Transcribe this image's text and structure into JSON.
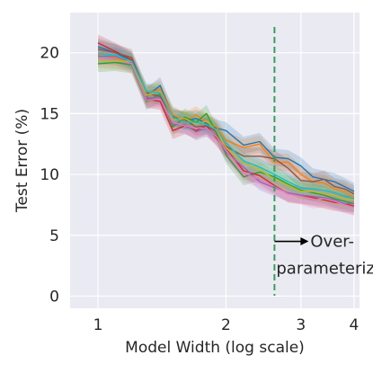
{
  "chart_data": {
    "type": "line",
    "title": "",
    "xlabel": "Model Width (log scale)",
    "ylabel": "Test Error (%)",
    "xlim": [
      0.86,
      4.12
    ],
    "ylim": [
      -1.0,
      23.3
    ],
    "x_scale": "log",
    "grid": true,
    "legend": "none",
    "xticks": [
      1,
      2,
      3,
      4
    ],
    "xtick_labels": [
      "1",
      "2",
      "3",
      "4"
    ],
    "yticks": [
      0,
      5,
      10,
      15,
      20
    ],
    "ytick_labels": [
      "0",
      "5",
      "10",
      "15",
      "20"
    ],
    "x": [
      1.0,
      1.1,
      1.2,
      1.3,
      1.4,
      1.5,
      1.6,
      1.7,
      1.8,
      1.9,
      2.0,
      2.2,
      2.4,
      2.6,
      2.8,
      3.0,
      3.2,
      3.4,
      3.6,
      3.8,
      4.0
    ],
    "series": [
      {
        "color": "#1f77b4",
        "values": [
          20.5,
          20.0,
          19.3,
          16.4,
          17.3,
          14.8,
          14.4,
          14.6,
          14.2,
          13.8,
          13.6,
          12.4,
          12.7,
          11.4,
          11.3,
          10.7,
          9.8,
          9.6,
          9.4,
          9.0,
          8.6
        ]
      },
      {
        "color": "#ff7f0e",
        "values": [
          19.8,
          19.6,
          19.0,
          16.6,
          17.0,
          14.9,
          14.4,
          14.9,
          14.3,
          13.9,
          12.8,
          12.2,
          12.5,
          11.0,
          11.0,
          10.0,
          9.4,
          9.3,
          8.8,
          8.6,
          8.1
        ]
      },
      {
        "color": "#2ca02c",
        "values": [
          19.1,
          19.2,
          19.0,
          16.0,
          16.6,
          13.9,
          14.7,
          14.3,
          15.0,
          13.4,
          11.6,
          9.8,
          10.2,
          9.8,
          9.2,
          8.7,
          8.5,
          8.3,
          8.0,
          7.8,
          7.6
        ]
      },
      {
        "color": "#d62728",
        "values": [
          20.8,
          20.1,
          19.4,
          16.2,
          16.0,
          13.6,
          14.0,
          13.6,
          14.0,
          13.0,
          12.1,
          10.3,
          9.9,
          9.1,
          8.4,
          8.3,
          8.1,
          7.9,
          7.7,
          7.6,
          7.4
        ]
      },
      {
        "color": "#9467bd",
        "values": [
          19.7,
          19.7,
          19.2,
          16.3,
          16.3,
          14.1,
          14.1,
          13.5,
          13.8,
          13.2,
          11.8,
          10.6,
          9.4,
          8.9,
          8.5,
          8.3,
          8.2,
          8.1,
          7.9,
          7.6,
          7.6
        ]
      },
      {
        "color": "#8c564b",
        "values": [
          20.3,
          20.0,
          19.6,
          16.7,
          16.4,
          14.6,
          14.5,
          13.9,
          14.0,
          13.5,
          12.3,
          11.5,
          11.5,
          11.3,
          10.5,
          9.5,
          9.4,
          9.6,
          9.0,
          8.8,
          8.4
        ]
      },
      {
        "color": "#e377c2",
        "values": [
          19.5,
          19.4,
          19.1,
          16.1,
          16.2,
          14.3,
          14.0,
          13.8,
          13.8,
          13.1,
          12.0,
          10.1,
          9.6,
          9.0,
          8.4,
          8.2,
          7.9,
          8.0,
          7.8,
          7.5,
          7.3
        ]
      },
      {
        "color": "#bcbd22",
        "values": [
          19.4,
          19.3,
          19.3,
          16.5,
          16.8,
          14.5,
          14.6,
          14.1,
          14.4,
          13.6,
          12.2,
          10.9,
          10.4,
          9.6,
          9.1,
          8.6,
          8.6,
          8.4,
          8.3,
          8.0,
          7.9
        ]
      },
      {
        "color": "#17becf",
        "values": [
          19.9,
          19.8,
          19.3,
          16.8,
          16.7,
          14.7,
          14.3,
          14.3,
          14.1,
          13.7,
          12.6,
          11.1,
          10.6,
          10.0,
          9.4,
          8.9,
          8.8,
          8.7,
          8.5,
          8.2,
          8.0
        ]
      }
    ],
    "band_half_width": 0.7,
    "vline": {
      "x": 2.6,
      "color": "#3a9d5d",
      "style": "dashed"
    },
    "annotations": [
      {
        "lines": [
          "Over-",
          "parameterized"
        ],
        "arrow": "right",
        "x": 2.6,
        "y": 4.5
      }
    ],
    "colors": {
      "plot_background": "#eaeaf2",
      "grid": "#ffffff",
      "text": "#262626"
    }
  }
}
